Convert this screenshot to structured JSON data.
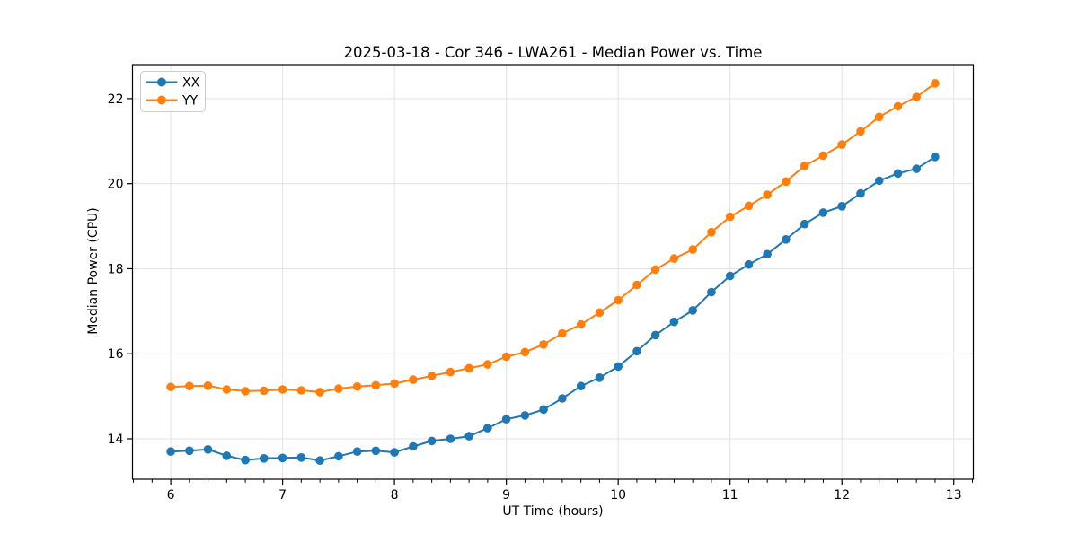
{
  "figure": {
    "title": "2025-03-18 - Cor 346 - LWA261 - Median Power vs. Time"
  },
  "chart_data": {
    "type": "line",
    "title": "2025-03-18 - Cor 346 - LWA261 - Median Power vs. Time",
    "xlabel": "UT Time (hours)",
    "ylabel": "Median Power (CPU)",
    "x": [
      6.0,
      6.167,
      6.333,
      6.5,
      6.667,
      6.833,
      7.0,
      7.167,
      7.333,
      7.5,
      7.667,
      7.833,
      8.0,
      8.167,
      8.333,
      8.5,
      8.667,
      8.833,
      9.0,
      9.167,
      9.333,
      9.5,
      9.667,
      9.833,
      10.0,
      10.167,
      10.333,
      10.5,
      10.667,
      10.833,
      11.0,
      11.167,
      11.333,
      11.5,
      11.667,
      11.833,
      12.0,
      12.167,
      12.333,
      12.5,
      12.667,
      12.833
    ],
    "series": [
      {
        "name": "XX",
        "color": "#1f77b4",
        "values": [
          13.7,
          13.72,
          13.75,
          13.6,
          13.5,
          13.54,
          13.55,
          13.56,
          13.49,
          13.59,
          13.7,
          13.72,
          13.68,
          13.82,
          13.95,
          14.0,
          14.06,
          14.25,
          14.46,
          14.55,
          14.69,
          14.95,
          15.24,
          15.44,
          15.7,
          16.06,
          16.44,
          16.75,
          17.02,
          17.45,
          17.83,
          18.1,
          18.34,
          18.69,
          19.05,
          19.32,
          19.47,
          19.77,
          20.07,
          20.24,
          20.35,
          20.63
        ]
      },
      {
        "name": "YY",
        "color": "#ff7f0e",
        "values": [
          15.22,
          15.24,
          15.25,
          15.16,
          15.12,
          15.13,
          15.16,
          15.14,
          15.1,
          15.18,
          15.23,
          15.26,
          15.3,
          15.39,
          15.48,
          15.57,
          15.66,
          15.75,
          15.93,
          16.04,
          16.22,
          16.48,
          16.69,
          16.97,
          17.26,
          17.62,
          17.98,
          18.24,
          18.45,
          18.86,
          19.22,
          19.48,
          19.74,
          20.05,
          20.42,
          20.66,
          20.92,
          21.23,
          21.57,
          21.82,
          22.04,
          22.36
        ]
      }
    ],
    "xlim": [
      5.658,
      13.175
    ],
    "ylim": [
      13.05,
      22.8
    ],
    "xticks": [
      6,
      7,
      8,
      9,
      10,
      11,
      12,
      13
    ],
    "yticks": [
      14,
      16,
      18,
      20,
      22
    ],
    "x_minor_tick_step": 0.1667,
    "grid": true,
    "grid_color": "#e3e3e3",
    "legend_position": "upper left",
    "marker": "circle",
    "spine_color": "#000000"
  }
}
